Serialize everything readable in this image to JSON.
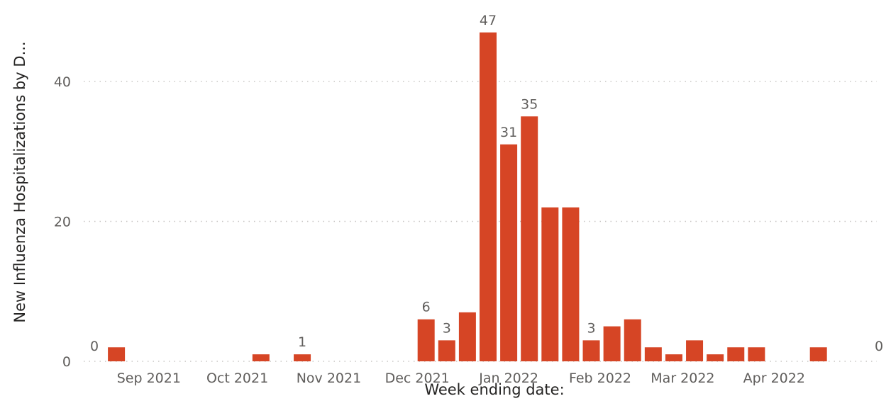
{
  "chart_data": {
    "type": "bar",
    "title": "",
    "xlabel": "Week ending date:",
    "ylabel": "New Influenza Hospitalizations by D...",
    "ylim": [
      0,
      49
    ],
    "yticks": [
      0,
      20,
      40
    ],
    "grid": "horizontal-dotted",
    "bar_color": "#D64525",
    "x_start": "2021-08-14",
    "x_end": "2022-05-07",
    "x_tick_labels": [
      {
        "date": "2021-09-01",
        "label": "Sep 2021"
      },
      {
        "date": "2021-10-01",
        "label": "Oct 2021"
      },
      {
        "date": "2021-11-01",
        "label": "Nov 2021"
      },
      {
        "date": "2021-12-01",
        "label": "Dec 2021"
      },
      {
        "date": "2022-01-01",
        "label": "Jan 2022"
      },
      {
        "date": "2022-02-01",
        "label": "Feb 2022"
      },
      {
        "date": "2022-03-01",
        "label": "Mar 2022"
      },
      {
        "date": "2022-04-01",
        "label": "Apr 2022"
      }
    ],
    "bars": [
      {
        "date": "2021-08-21",
        "value": 2
      },
      {
        "date": "2021-10-09",
        "value": 1
      },
      {
        "date": "2021-10-23",
        "value": 1,
        "label": "1"
      },
      {
        "date": "2021-12-04",
        "value": 6,
        "label": "6"
      },
      {
        "date": "2021-12-11",
        "value": 3,
        "label": "3"
      },
      {
        "date": "2021-12-18",
        "value": 7
      },
      {
        "date": "2021-12-25",
        "value": 47,
        "label": "47"
      },
      {
        "date": "2022-01-01",
        "value": 31,
        "label": "31"
      },
      {
        "date": "2022-01-08",
        "value": 35,
        "label": "35"
      },
      {
        "date": "2022-01-15",
        "value": 22
      },
      {
        "date": "2022-01-22",
        "value": 22
      },
      {
        "date": "2022-01-29",
        "value": 3,
        "label": "3"
      },
      {
        "date": "2022-02-05",
        "value": 5
      },
      {
        "date": "2022-02-12",
        "value": 6
      },
      {
        "date": "2022-02-19",
        "value": 2
      },
      {
        "date": "2022-02-26",
        "value": 1
      },
      {
        "date": "2022-03-05",
        "value": 3
      },
      {
        "date": "2022-03-12",
        "value": 1
      },
      {
        "date": "2022-03-19",
        "value": 2
      },
      {
        "date": "2022-03-26",
        "value": 2
      },
      {
        "date": "2022-04-16",
        "value": 2
      }
    ],
    "annotations": [
      {
        "date": "2021-08-14",
        "text": "0"
      },
      {
        "date": "2022-05-07",
        "text": "0"
      }
    ]
  }
}
